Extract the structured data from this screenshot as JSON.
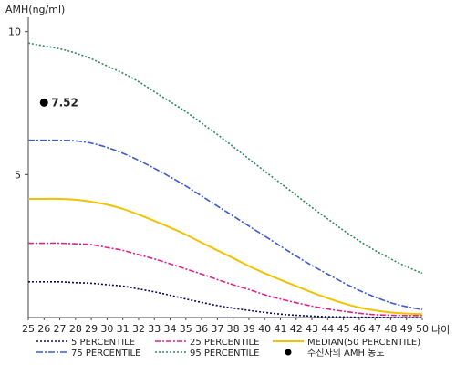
{
  "chart_data": {
    "type": "line",
    "ylabel": "AMH(ng/ml)",
    "xlabel": "나이",
    "xlim": [
      25,
      50
    ],
    "ylim": [
      0,
      10.5
    ],
    "x_ticks": [
      25,
      26,
      27,
      28,
      29,
      30,
      31,
      32,
      33,
      34,
      35,
      36,
      37,
      38,
      39,
      40,
      41,
      42,
      43,
      44,
      45,
      46,
      47,
      48,
      49,
      50
    ],
    "y_ticks": [
      5,
      10
    ],
    "x": [
      25,
      26,
      27,
      28,
      29,
      30,
      31,
      32,
      33,
      34,
      35,
      36,
      37,
      38,
      39,
      40,
      41,
      42,
      43,
      44,
      45,
      46,
      47,
      48,
      49,
      50
    ],
    "series": [
      {
        "name": "5 PERCENTILE",
        "color": "#0a0a5a",
        "dash": "2,2",
        "values": [
          1.25,
          1.25,
          1.25,
          1.22,
          1.2,
          1.15,
          1.1,
          1.0,
          0.9,
          0.78,
          0.65,
          0.53,
          0.42,
          0.33,
          0.25,
          0.18,
          0.12,
          0.08,
          0.05,
          0.03,
          0.02,
          0.01,
          0.01,
          0.0,
          0.0,
          0.0
        ]
      },
      {
        "name": "25 PERCENTILE",
        "color": "#e0218a",
        "dash": "6,2,2,2",
        "values": [
          2.6,
          2.6,
          2.6,
          2.58,
          2.55,
          2.45,
          2.35,
          2.2,
          2.05,
          1.88,
          1.7,
          1.52,
          1.33,
          1.15,
          0.98,
          0.8,
          0.65,
          0.52,
          0.4,
          0.3,
          0.22,
          0.15,
          0.1,
          0.08,
          0.07,
          0.07
        ]
      },
      {
        "name": "MEDIAN(50 PERCENTILE)",
        "color": "#f2c200",
        "dash": "",
        "values": [
          4.15,
          4.15,
          4.15,
          4.12,
          4.05,
          3.95,
          3.8,
          3.6,
          3.38,
          3.15,
          2.9,
          2.62,
          2.35,
          2.08,
          1.8,
          1.55,
          1.32,
          1.1,
          0.88,
          0.68,
          0.5,
          0.35,
          0.25,
          0.18,
          0.14,
          0.12
        ]
      },
      {
        "name": "75 PERCENTILE",
        "color": "#3c5bd0",
        "dash": "7,2,2,2",
        "values": [
          6.2,
          6.2,
          6.2,
          6.18,
          6.1,
          5.95,
          5.75,
          5.5,
          5.22,
          4.92,
          4.6,
          4.25,
          3.9,
          3.55,
          3.2,
          2.85,
          2.5,
          2.15,
          1.82,
          1.52,
          1.22,
          0.95,
          0.72,
          0.52,
          0.38,
          0.28
        ]
      },
      {
        "name": "95 PERCENTILE",
        "color": "#2e8b57",
        "dash": "2,2",
        "values": [
          9.6,
          9.5,
          9.4,
          9.25,
          9.05,
          8.8,
          8.55,
          8.25,
          7.9,
          7.55,
          7.2,
          6.8,
          6.4,
          5.98,
          5.55,
          5.12,
          4.7,
          4.28,
          3.85,
          3.45,
          3.05,
          2.68,
          2.35,
          2.05,
          1.78,
          1.55
        ]
      }
    ],
    "patient_point": {
      "label": "수진자의 AMH 농도",
      "x": 26,
      "y": 7.52,
      "value_label": "7.52",
      "color": "#000000"
    },
    "legend": [
      {
        "name": "5 PERCENTILE",
        "color": "#0a0a5a",
        "dash": "2,2",
        "kind": "line"
      },
      {
        "name": "25 PERCENTILE",
        "color": "#e0218a",
        "dash": "6,2,2,2",
        "kind": "line"
      },
      {
        "name": "MEDIAN(50 PERCENTILE)",
        "color": "#f2c200",
        "dash": "",
        "kind": "line"
      },
      {
        "name": "75 PERCENTILE",
        "color": "#3c5bd0",
        "dash": "7,2,2,2",
        "kind": "line"
      },
      {
        "name": "95 PERCENTILE",
        "color": "#2e8b57",
        "dash": "2,2",
        "kind": "line"
      },
      {
        "name": "수진자의 AMH 농도",
        "color": "#000000",
        "dash": "",
        "kind": "dot"
      }
    ],
    "legend_placement": "bottom",
    "grid": false
  }
}
